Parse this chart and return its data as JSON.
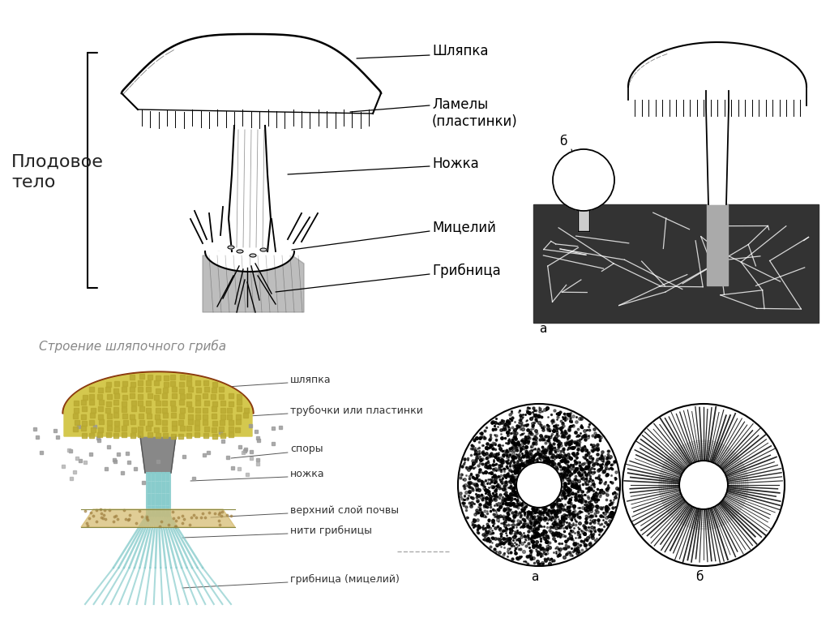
{
  "bg_color": "#ffffff",
  "title_top_left": "Плодовое\nтело",
  "labels_top": [
    "Шляпка",
    "Ламелы\n(пластинки)",
    "Ножка",
    "Мицелий",
    "Грибница"
  ],
  "title_bottom_left": "Строение шляпочного гриба",
  "labels_bottom": [
    "шляпка",
    "трубочки или пластинки",
    "споры",
    "ножка",
    "нити грибницы",
    "верхний слой почвы",
    "грибница (мицелий)"
  ],
  "label_b_top": "б",
  "label_a_bottom_right": "а",
  "label_b_bottom_right": "б",
  "label_a_top_right": "а"
}
